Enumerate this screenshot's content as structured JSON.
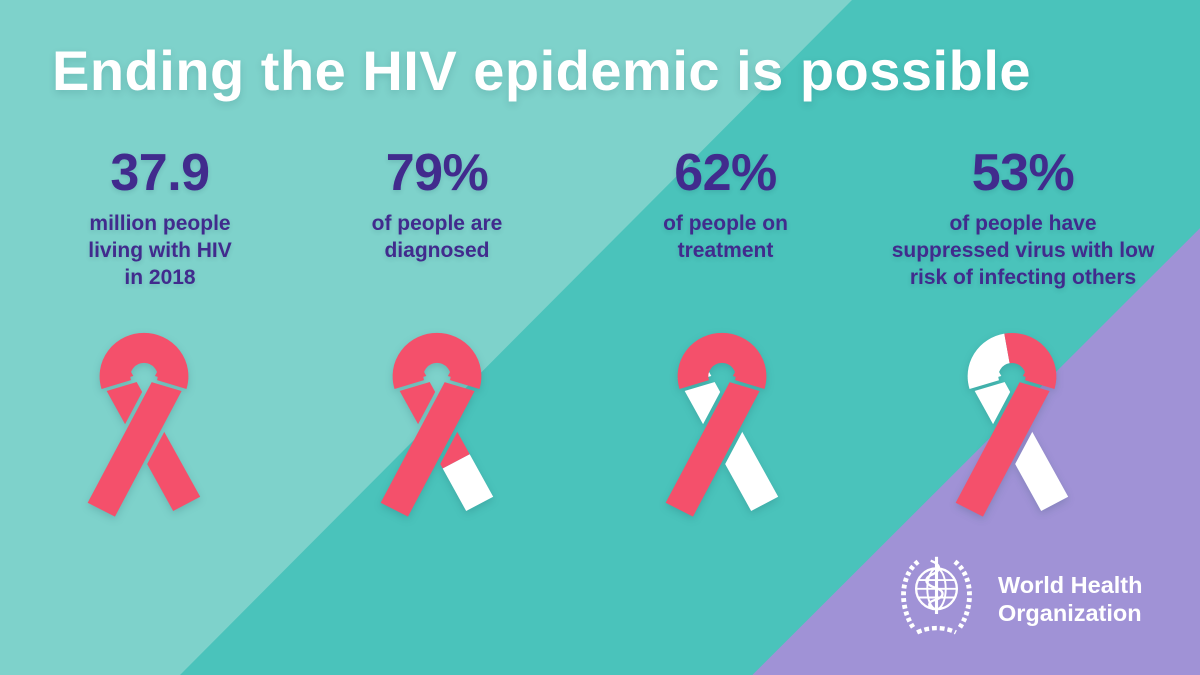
{
  "title": "Ending the HIV epidemic is possible",
  "stats": [
    {
      "value": "37.9",
      "label": "million people\nliving with HIV\nin 2018"
    },
    {
      "value": "79%",
      "label": "of people are\ndiagnosed"
    },
    {
      "value": "62%",
      "label": "of people on\ntreatment"
    },
    {
      "value": "53%",
      "label": "of people have\nsuppressed virus with low\nrisk of infecting others"
    }
  ],
  "ribbons": [
    {
      "name": "aids-ribbon-fully-red",
      "arc_left": "red",
      "arc_right": "red",
      "back_upper": "red",
      "back_lower": "red",
      "front": "red"
    },
    {
      "name": "aids-ribbon-79pct-red-tail-white",
      "arc_left": "red",
      "arc_right": "red",
      "back_upper": "red",
      "back_lower": "white",
      "front": "red"
    },
    {
      "name": "aids-ribbon-62pct-red-back-white",
      "arc_left": "red",
      "arc_right": "red",
      "back_upper": "white",
      "back_lower": "white",
      "front": "red"
    },
    {
      "name": "aids-ribbon-53pct-red-more-white",
      "arc_left": "white",
      "arc_right": "red",
      "back_upper": "white",
      "back_lower": "white",
      "front": "red"
    }
  ],
  "logo": {
    "org_line1": "World Health",
    "org_line2": "Organization",
    "emblem": "who-emblem-globe-staff-laurel"
  },
  "colors": {
    "teal_light": "#7ed2cb",
    "teal_dark": "#4ac3bb",
    "purple": "#a092d6",
    "ribbon_red": "#f4506b",
    "text_purple": "#412b8d",
    "white": "#ffffff"
  },
  "chart_data": {
    "type": "table",
    "title": "Ending the HIV epidemic is possible",
    "columns": [
      "value",
      "description"
    ],
    "rows": [
      [
        "37.9",
        "million people living with HIV in 2018"
      ],
      [
        "79%",
        "of people are diagnosed"
      ],
      [
        "62%",
        "of people on treatment"
      ],
      [
        "53%",
        "of people have suppressed virus with low risk of infecting others"
      ]
    ]
  }
}
